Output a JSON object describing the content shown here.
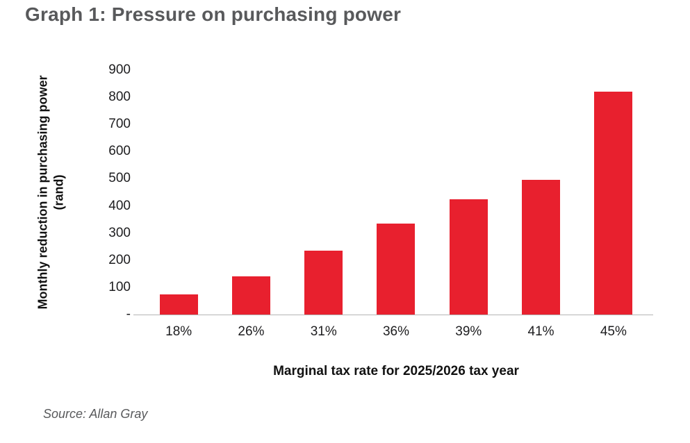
{
  "page": {
    "title": "Graph 1: Pressure on purchasing power",
    "source": "Source: Allan Gray"
  },
  "chart_data": {
    "type": "bar",
    "title": "Graph 1: Pressure on purchasing power",
    "categories": [
      "18%",
      "26%",
      "31%",
      "36%",
      "39%",
      "41%",
      "45%"
    ],
    "values": [
      75,
      140,
      235,
      335,
      425,
      495,
      820
    ],
    "xlabel": "Marginal tax rate for 2025/2026 tax year",
    "ylabel": "Monthly reduction in purchasing power (rand)",
    "ylabel_line1": "Monthly reduction in purchasing power",
    "ylabel_line2": "(rand)",
    "ylim": [
      0,
      900
    ],
    "ytick_values": [
      900,
      800,
      700,
      600,
      500,
      400,
      300,
      200,
      100,
      0
    ],
    "ytick_labels": [
      "900",
      "800",
      "700",
      "600",
      "500",
      "400",
      "300",
      "200",
      "100",
      "-"
    ],
    "grid": false,
    "legend": "none",
    "bar_color": "#e8202e",
    "source": "Source: Allan Gray"
  },
  "colors": {
    "bar": "#e8202e",
    "title_text": "#58595b",
    "axis_text": "#1d1d1f",
    "baseline": "#b5b5b5",
    "background": "#ffffff"
  }
}
